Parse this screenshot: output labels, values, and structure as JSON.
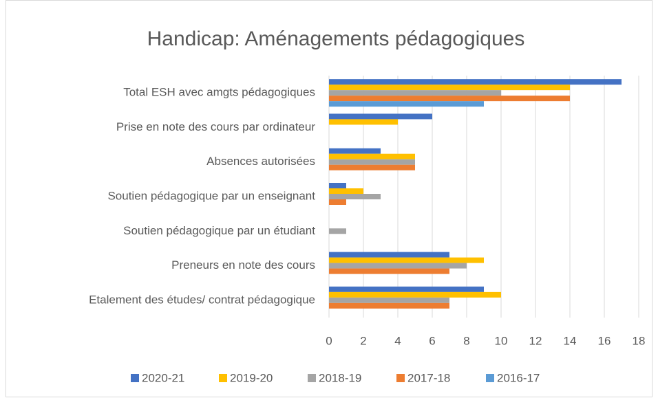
{
  "chart_data": {
    "type": "bar",
    "orientation": "horizontal",
    "title": "Handicap: Aménagements pédagogiques",
    "categories": [
      "Total ESH avec  amgts pédagogiques",
      "Prise en note des cours par ordinateur",
      "Absences autorisées",
      "Soutien pédagogique par un enseignant",
      "Soutien pédagogique par un étudiant",
      "Preneurs en note des cours",
      "Etalement des études/ contrat pédagogique"
    ],
    "series": [
      {
        "name": "2020-21",
        "color": "#4472c4",
        "values": [
          17,
          6,
          3,
          1,
          null,
          7,
          9
        ]
      },
      {
        "name": "2019-20",
        "color": "#ffc000",
        "values": [
          14,
          4,
          5,
          2,
          null,
          9,
          10
        ]
      },
      {
        "name": "2018-19",
        "color": "#a5a5a5",
        "values": [
          10,
          null,
          5,
          3,
          1,
          8,
          7
        ]
      },
      {
        "name": "2017-18",
        "color": "#ed7d31",
        "values": [
          14,
          null,
          5,
          1,
          null,
          7,
          7
        ]
      },
      {
        "name": "2016-17",
        "color": "#5b9bd5",
        "values": [
          9,
          null,
          null,
          null,
          null,
          null,
          null
        ]
      }
    ],
    "xlim": [
      0,
      18
    ],
    "xticks": [
      0,
      2,
      4,
      6,
      8,
      10,
      12,
      14,
      16,
      18
    ],
    "grid": true,
    "legend": "bottom"
  }
}
